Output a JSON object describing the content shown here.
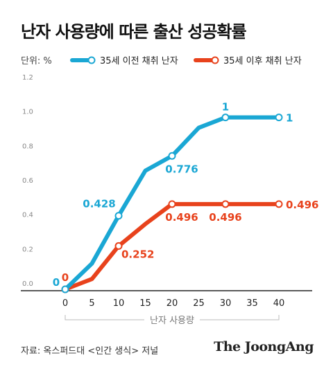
{
  "title": "난자 사용량에 따른 출산 성공확률",
  "unit_label": "단위: %",
  "source": "자료: 옥스퍼드대 <인간 생식> 저널",
  "brand": "The JoongAng",
  "colors": {
    "series1": "#1aa7d4",
    "series2": "#e8421c",
    "axis": "#222222",
    "grid": "#dddddd",
    "bracket": "#bbbbbb",
    "tick": "#888888"
  },
  "chart_data": {
    "type": "line",
    "title": "난자 사용량에 따른 출산 성공확률",
    "xlabel": "난자 사용량",
    "ylabel": "",
    "x": [
      0,
      5,
      10,
      15,
      20,
      25,
      30,
      35,
      40
    ],
    "x_ticks": [
      "0",
      "5",
      "10",
      "15",
      "20",
      "25",
      "30",
      "35",
      "40"
    ],
    "ylim": [
      0,
      1.2
    ],
    "y_ticks": [
      "0.0",
      "0.2",
      "0.4",
      "0.6",
      "0.8",
      "1.0",
      "1.2"
    ],
    "grid": false,
    "legend_position": "top",
    "series": [
      {
        "name": "35세 이전 채취 난자",
        "color": "#1aa7d4",
        "x": [
          0,
          5,
          10,
          15,
          20,
          25,
          30,
          35,
          40
        ],
        "values": [
          0,
          0.15,
          0.428,
          0.69,
          0.776,
          0.94,
          1,
          1,
          1
        ],
        "markers": [
          0,
          10,
          20,
          30,
          40
        ],
        "labels": [
          {
            "x": 0,
            "text": "0"
          },
          {
            "x": 10,
            "text": "0.428"
          },
          {
            "x": 20,
            "text": "0.776"
          },
          {
            "x": 30,
            "text": "1"
          },
          {
            "x": 40,
            "text": "1"
          }
        ]
      },
      {
        "name": "35세 이후 채취 난자",
        "color": "#e8421c",
        "x": [
          0,
          5,
          10,
          15,
          20,
          25,
          30,
          35,
          40
        ],
        "values": [
          0,
          0.06,
          0.252,
          0.38,
          0.496,
          0.496,
          0.496,
          0.496,
          0.496
        ],
        "markers": [
          0,
          10,
          20,
          30,
          40
        ],
        "labels": [
          {
            "x": 0,
            "text": "0"
          },
          {
            "x": 10,
            "text": "0.252"
          },
          {
            "x": 20,
            "text": "0.496"
          },
          {
            "x": 30,
            "text": "0.496"
          },
          {
            "x": 40,
            "text": "0.496"
          }
        ]
      }
    ]
  }
}
